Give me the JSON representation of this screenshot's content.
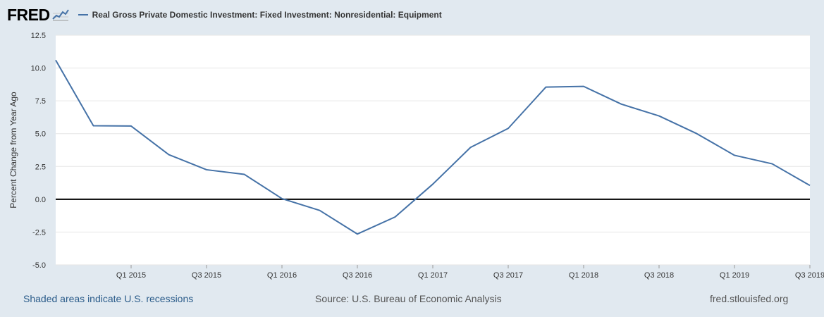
{
  "header": {
    "logo_text": "FRED",
    "logo_icon": "chart-line-icon",
    "legend_label": "Real Gross Private Domestic Investment: Fixed Investment: Nonresidential: Equipment"
  },
  "footer": {
    "recessions_note": "Shaded areas indicate U.S. recessions",
    "source": "Source: U.S. Bureau of Economic Analysis",
    "site": "fred.stlouisfed.org"
  },
  "colors": {
    "series": "#4572a7",
    "background": "#e1e9f0",
    "plot": "#ffffff",
    "zero_line": "#000000"
  },
  "chart_data": {
    "type": "line",
    "title": "",
    "ylabel": "Percent Change from Year Ago",
    "xlabel": "",
    "ylim": [
      -5.0,
      12.5
    ],
    "yticks": [
      "12.5",
      "10.0",
      "7.5",
      "5.0",
      "2.5",
      "0.0",
      "-2.5",
      "-5.0"
    ],
    "grid": true,
    "xticks": [
      "Q1 2015",
      "Q3 2015",
      "Q1 2016",
      "Q3 2016",
      "Q1 2017",
      "Q3 2017",
      "Q1 2018",
      "Q3 2018",
      "Q1 2019",
      "Q3 2019"
    ],
    "x": [
      "Q3 2014",
      "Q4 2014",
      "Q1 2015",
      "Q2 2015",
      "Q3 2015",
      "Q4 2015",
      "Q1 2016",
      "Q2 2016",
      "Q3 2016",
      "Q4 2016",
      "Q1 2017",
      "Q2 2017",
      "Q3 2017",
      "Q4 2017",
      "Q1 2018",
      "Q2 2018",
      "Q3 2018",
      "Q4 2018",
      "Q1 2019",
      "Q2 2019",
      "Q3 2019"
    ],
    "series": [
      {
        "name": "Real Gross Private Domestic Investment: Fixed Investment: Nonresidential: Equipment",
        "values": [
          10.6,
          5.6,
          5.58,
          3.4,
          2.25,
          1.9,
          0.05,
          -0.85,
          -2.65,
          -1.35,
          1.15,
          3.95,
          5.4,
          8.55,
          8.6,
          7.25,
          6.35,
          5.0,
          3.35,
          2.7,
          1.05
        ]
      }
    ]
  }
}
